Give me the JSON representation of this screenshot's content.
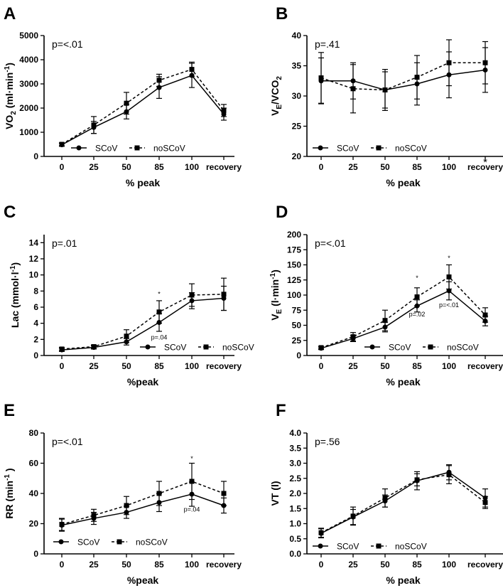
{
  "figure": {
    "legend_series": [
      "SCoV",
      "noSCoV"
    ]
  },
  "chart_data": [
    {
      "panel": "A",
      "type": "line",
      "title": "",
      "categories": [
        "0",
        "25",
        "50",
        "85",
        "100",
        "recovery"
      ],
      "ylim": [
        0,
        5000
      ],
      "yticks": [
        0,
        1000,
        2000,
        3000,
        4000,
        5000
      ],
      "ytick_labels": [
        "0",
        "1000",
        "2000",
        "3000",
        "4000",
        "5000"
      ],
      "ylabel_parts": [
        {
          "t": "VO",
          "s": ""
        },
        {
          "t": "2",
          "s": "sub"
        },
        {
          "t": " (ml·min",
          "s": ""
        },
        {
          "t": "-1",
          "s": "sup"
        },
        {
          "t": ")",
          "s": ""
        }
      ],
      "xlabel": "% peak",
      "p_text": "p=<.01",
      "series": [
        {
          "name": "SCoV",
          "values": [
            480,
            1200,
            1850,
            2850,
            3350,
            1750
          ],
          "err": [
            60,
            250,
            300,
            450,
            500,
            250
          ]
        },
        {
          "name": "noSCoV",
          "values": [
            500,
            1300,
            2200,
            3150,
            3600,
            1900
          ],
          "err": [
            60,
            350,
            450,
            250,
            300,
            250
          ]
        }
      ],
      "annotations": []
    },
    {
      "panel": "B",
      "type": "line",
      "title": "",
      "categories": [
        "0",
        "25",
        "50",
        "85",
        "100",
        "recovery"
      ],
      "ylim": [
        20,
        40
      ],
      "yticks": [
        20,
        25,
        30,
        35,
        40
      ],
      "ytick_labels": [
        "20",
        "25",
        "30",
        "35",
        "40"
      ],
      "ylabel_parts": [
        {
          "t": "V",
          "s": ""
        },
        {
          "t": "E",
          "s": "sub"
        },
        {
          "t": "/VCO",
          "s": ""
        },
        {
          "t": "2",
          "s": "sub"
        }
      ],
      "xlabel": "% peak",
      "p_text": "p=.41",
      "series": [
        {
          "name": "SCoV",
          "values": [
            32.5,
            32.5,
            31.0,
            32.0,
            33.5,
            34.3
          ],
          "err": [
            3.8,
            3.0,
            3.0,
            3.5,
            3.8,
            3.7
          ]
        },
        {
          "name": "noSCoV",
          "values": [
            33.0,
            31.2,
            31.0,
            33.1,
            35.5,
            35.5
          ],
          "err": [
            4.2,
            4.0,
            3.4,
            3.6,
            3.8,
            3.5
          ]
        }
      ],
      "annotations": [
        {
          "cat": 5,
          "y": 19.0,
          "text": "*",
          "size": 15
        }
      ]
    },
    {
      "panel": "C",
      "type": "line",
      "title": "",
      "categories": [
        "0",
        "25",
        "50",
        "85",
        "100",
        "recovery"
      ],
      "ylim": [
        0,
        15
      ],
      "yticks": [
        0,
        2,
        4,
        6,
        8,
        10,
        12,
        14
      ],
      "ytick_labels": [
        "0",
        "2",
        "4",
        "6",
        "8",
        "10",
        "12",
        "14"
      ],
      "ylabel_parts": [
        {
          "t": "Lac (mmol·l",
          "s": ""
        },
        {
          "t": "-1",
          "s": "sup"
        },
        {
          "t": ")",
          "s": ""
        }
      ],
      "xlabel": "%peak",
      "p_text": "p=.01",
      "series": [
        {
          "name": "SCoV",
          "values": [
            0.7,
            1.0,
            1.7,
            4.1,
            6.8,
            7.1
          ],
          "err": [
            0.2,
            0.2,
            0.4,
            1.1,
            1.0,
            1.5
          ]
        },
        {
          "name": "noSCoV",
          "values": [
            0.8,
            1.1,
            2.4,
            5.4,
            7.5,
            7.6
          ],
          "err": [
            0.2,
            0.2,
            0.8,
            1.4,
            1.4,
            2.0
          ]
        }
      ],
      "annotations": [
        {
          "cat": 3,
          "y": 7.6,
          "text": "*",
          "size": 9
        },
        {
          "cat": 3,
          "y": 2.0,
          "text": "p=.04",
          "size": 9
        }
      ]
    },
    {
      "panel": "D",
      "type": "line",
      "title": "",
      "categories": [
        "0",
        "25",
        "50",
        "85",
        "100",
        "recovery"
      ],
      "ylim": [
        0,
        200
      ],
      "yticks": [
        0,
        25,
        50,
        75,
        100,
        125,
        150,
        175,
        200
      ],
      "ytick_labels": [
        "0",
        "25",
        "50",
        "75",
        "100",
        "125",
        "150",
        "175",
        "200"
      ],
      "ylabel_parts": [
        {
          "t": "V",
          "s": ""
        },
        {
          "t": "E",
          "s": "sub"
        },
        {
          "t": " (l·min",
          "s": ""
        },
        {
          "t": "-1",
          "s": "sup"
        },
        {
          "t": ")",
          "s": ""
        }
      ],
      "xlabel": "% peak",
      "p_text": "p=<.01",
      "series": [
        {
          "name": "SCoV",
          "values": [
            12,
            28,
            47,
            82,
            107,
            57
          ],
          "err": [
            2,
            5,
            8,
            10,
            15,
            8
          ]
        },
        {
          "name": "noSCoV",
          "values": [
            13,
            31,
            58,
            97,
            130,
            67
          ],
          "err": [
            2,
            7,
            17,
            15,
            20,
            12
          ]
        }
      ],
      "annotations": [
        {
          "cat": 3,
          "y": 128,
          "text": "*",
          "size": 9
        },
        {
          "cat": 3,
          "y": 65,
          "text": "p=.02",
          "size": 9
        },
        {
          "cat": 4,
          "y": 161,
          "text": "*",
          "size": 9
        },
        {
          "cat": 4,
          "y": 80,
          "text": "p=<.01",
          "size": 9
        }
      ]
    },
    {
      "panel": "E",
      "type": "line",
      "title": "",
      "categories": [
        "0",
        "25",
        "50",
        "85",
        "100",
        "recovery"
      ],
      "ylim": [
        0,
        80
      ],
      "yticks": [
        0,
        20,
        40,
        60,
        80
      ],
      "ytick_labels": [
        "0",
        "20",
        "40",
        "60",
        "80"
      ],
      "ylabel_parts": [
        {
          "t": "RR (min",
          "s": ""
        },
        {
          "t": "-1",
          "s": "sup"
        },
        {
          "t": " )",
          "s": ""
        }
      ],
      "xlabel": "%peak",
      "p_text": "p=<.01",
      "series": [
        {
          "name": "SCoV",
          "values": [
            19,
            23.5,
            27.5,
            34,
            39.5,
            32
          ],
          "err": [
            4,
            4,
            4,
            6,
            8,
            5
          ]
        },
        {
          "name": "noSCoV",
          "values": [
            19.5,
            25.5,
            32,
            40,
            48,
            40
          ],
          "err": [
            4,
            4,
            6,
            8,
            12,
            8
          ]
        }
      ],
      "annotations": [
        {
          "cat": 4,
          "y": 63,
          "text": "*",
          "size": 9
        },
        {
          "cat": 4,
          "y": 28,
          "text": "p=.04",
          "size": 9
        }
      ]
    },
    {
      "panel": "F",
      "type": "line",
      "title": "",
      "categories": [
        "0",
        "25",
        "50",
        "85",
        "100",
        "recovery"
      ],
      "ylim": [
        0,
        4
      ],
      "yticks": [
        0,
        0.5,
        1,
        1.5,
        2,
        2.5,
        3,
        3.5,
        4
      ],
      "ytick_labels": [
        "0.0",
        "0.5",
        "1.0",
        "1.5",
        "2.0",
        "2.5",
        "3.0",
        "3.5",
        "4.0"
      ],
      "ylabel_parts": [
        {
          "t": "VT (l)",
          "s": ""
        }
      ],
      "xlabel": "% peak",
      "p_text": "p=.56",
      "series": [
        {
          "name": "SCoV",
          "values": [
            0.68,
            1.22,
            1.75,
            2.42,
            2.7,
            1.85
          ],
          "err": [
            0.15,
            0.25,
            0.2,
            0.3,
            0.25,
            0.3
          ]
        },
        {
          "name": "noSCoV",
          "values": [
            0.7,
            1.25,
            1.85,
            2.45,
            2.62,
            1.7
          ],
          "err": [
            0.15,
            0.3,
            0.3,
            0.2,
            0.3,
            0.2
          ]
        }
      ],
      "annotations": []
    }
  ]
}
